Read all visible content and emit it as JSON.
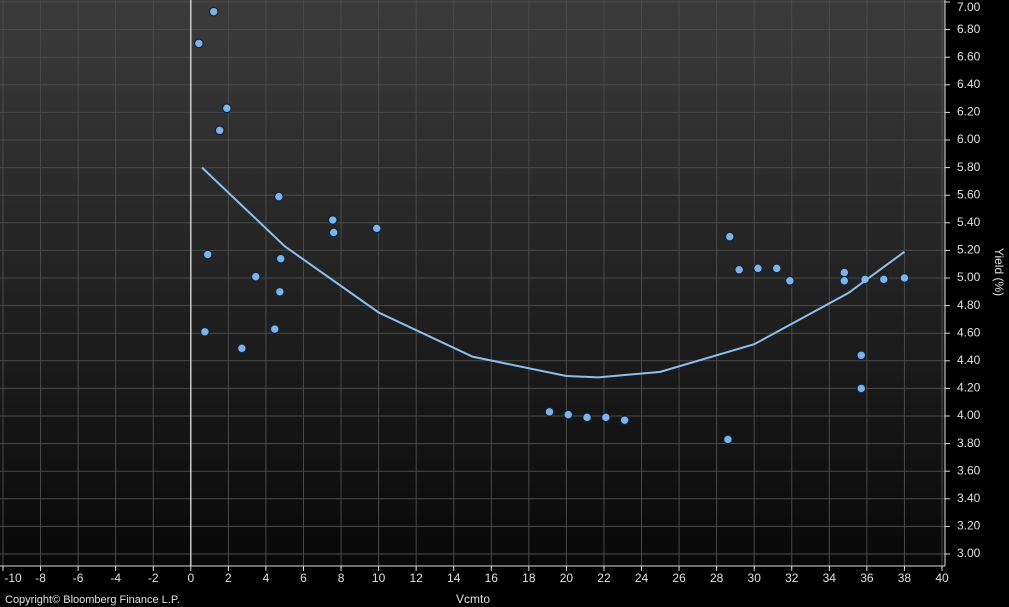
{
  "chart_data": {
    "type": "scatter",
    "x_label": "Vcmto",
    "y_label": "Yield (%)",
    "footer": "Copyright© Bloomberg Finance L.P.",
    "xlim": [
      -10,
      40
    ],
    "xticks": [
      -10,
      -8,
      -6,
      -4,
      -2,
      0,
      2,
      4,
      6,
      8,
      10,
      12,
      14,
      16,
      18,
      20,
      22,
      24,
      26,
      28,
      30,
      32,
      34,
      36,
      38,
      40
    ],
    "ylim": [
      3,
      7
    ],
    "yticks": [
      {
        "value": 3,
        "label": "3.00"
      },
      {
        "value": 3.2,
        "label": "3.20"
      },
      {
        "value": 3.4,
        "label": "3.40"
      },
      {
        "value": 3.6,
        "label": "3.60"
      },
      {
        "value": 3.8,
        "label": "3.80"
      },
      {
        "value": 4,
        "label": "4.00"
      },
      {
        "value": 4.2,
        "label": "4.20"
      },
      {
        "value": 4.4,
        "label": "4.40"
      },
      {
        "value": 4.6,
        "label": "4.60"
      },
      {
        "value": 4.8,
        "label": "4.80"
      },
      {
        "value": 5,
        "label": "5.00"
      },
      {
        "value": 5.2,
        "label": "5.20"
      },
      {
        "value": 5.4,
        "label": "5.40"
      },
      {
        "value": 5.6,
        "label": "5.60"
      },
      {
        "value": 5.8,
        "label": "5.80"
      },
      {
        "value": 6,
        "label": "6.00"
      },
      {
        "value": 6.2,
        "label": "6.20"
      },
      {
        "value": 6.4,
        "label": "6.40"
      },
      {
        "value": 6.6,
        "label": "6.60"
      },
      {
        "value": 6.8,
        "label": "6.80"
      },
      {
        "value": 7,
        "label": "7.00"
      }
    ],
    "grid": true,
    "series": [
      {
        "type": "scatter",
        "color": "#7fb3e8",
        "x": [
          0.43,
          1.22,
          1.92,
          1.54,
          0.9,
          0.75,
          2.72,
          3.46,
          4.69,
          4.79,
          4.74,
          4.47,
          7.56,
          7.61,
          9.9,
          19.1,
          20.1,
          21.1,
          22.1,
          23.1,
          28.6,
          28.7,
          29.2,
          30.2,
          31.2,
          31.9,
          34.8,
          34.8,
          35.7,
          35.7,
          35.9,
          36.9,
          38.0
        ],
        "values": [
          6.7,
          6.93,
          6.23,
          6.07,
          5.17,
          4.61,
          4.49,
          5.01,
          5.59,
          5.14,
          4.9,
          4.63,
          5.42,
          5.33,
          5.36,
          4.03,
          4.01,
          3.99,
          3.99,
          3.97,
          3.83,
          5.3,
          5.06,
          5.07,
          5.07,
          4.98,
          5.04,
          4.98,
          4.44,
          4.2,
          4.99,
          4.99,
          5.0
        ]
      },
      {
        "type": "line",
        "color": "#8cbff0",
        "x": [
          0.6,
          5,
          10,
          15,
          20,
          21.7,
          25,
          30,
          35,
          38
        ],
        "values": [
          5.8,
          5.23,
          4.75,
          4.43,
          4.29,
          4.28,
          4.32,
          4.52,
          4.89,
          5.19
        ]
      }
    ]
  }
}
